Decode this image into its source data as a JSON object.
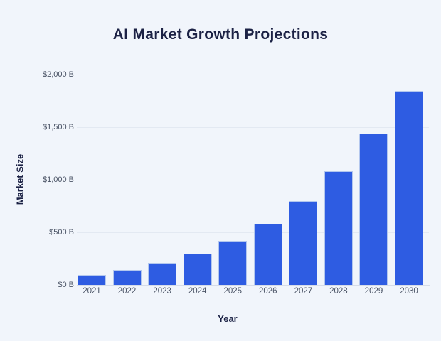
{
  "chart_data": {
    "type": "bar",
    "title": "AI Market Growth Projections",
    "xlabel": "Year",
    "ylabel": "Market Size",
    "categories": [
      "2021",
      "2022",
      "2023",
      "2024",
      "2025",
      "2026",
      "2027",
      "2028",
      "2029",
      "2030"
    ],
    "values": [
      95.6,
      142.3,
      207.9,
      298.3,
      420.5,
      583.2,
      800.3,
      1082.2,
      1441.9,
      1847.6
    ],
    "unit": "$ billions",
    "ylim": [
      0,
      2000
    ],
    "yticks": [
      {
        "value": 0,
        "label": "$0 B"
      },
      {
        "value": 500,
        "label": "$500 B"
      },
      {
        "value": 1000,
        "label": "$1,000 B"
      },
      {
        "value": 1500,
        "label": "$1,500 B"
      },
      {
        "value": 2000,
        "label": "$2,000 B"
      }
    ],
    "grid": true,
    "legend": "none",
    "colors": {
      "bar_fill": "#2e5ce2",
      "bar_edge": "#b3c7ee",
      "gridline": "#e3e9f2",
      "axis_line": "#d6dce8",
      "tick_text": "#4a5365",
      "title_text": "#1c2245",
      "axis_label_text": "#1c2245",
      "background": "#f1f5fb"
    }
  }
}
